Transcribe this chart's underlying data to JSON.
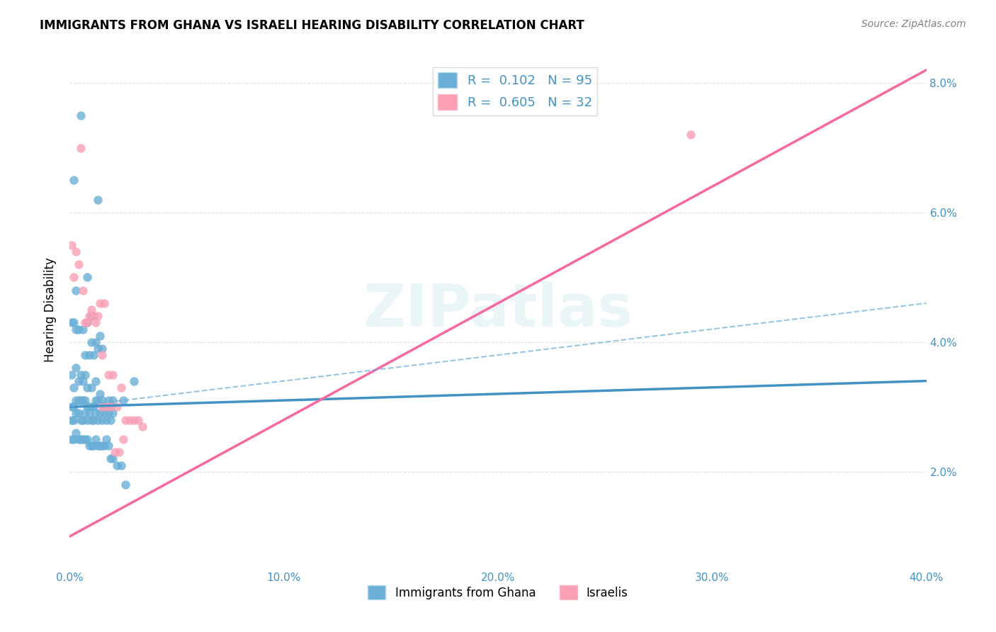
{
  "title": "IMMIGRANTS FROM GHANA VS ISRAELI HEARING DISABILITY CORRELATION CHART",
  "source": "Source: ZipAtlas.com",
  "xlabel_bottom": "",
  "ylabel": "Hearing Disability",
  "watermark": "ZIPatlas",
  "legend_r1": "R =  0.102   N = 95",
  "legend_r2": "R =  0.605   N = 32",
  "color_blue": "#6baed6",
  "color_pink": "#fa9fb5",
  "color_blue_dark": "#4292c6",
  "color_pink_dark": "#f768a1",
  "color_text_blue": "#4292c6",
  "xmin": 0.0,
  "xmax": 0.4,
  "ymin": 0.005,
  "ymax": 0.085,
  "yticks": [
    0.02,
    0.04,
    0.06,
    0.08
  ],
  "ytick_labels": [
    "2.0%",
    "4.0%",
    "6.0%",
    "8.0%"
  ],
  "xticks": [
    0.0,
    0.1,
    0.2,
    0.3,
    0.4
  ],
  "xtick_labels": [
    "0.0%",
    "10.0%",
    "20.0%",
    "30.0%",
    "40.0%"
  ],
  "blue_scatter_x": [
    0.005,
    0.013,
    0.002,
    0.008,
    0.003,
    0.001,
    0.002,
    0.004,
    0.003,
    0.006,
    0.008,
    0.01,
    0.01,
    0.012,
    0.014,
    0.015,
    0.007,
    0.009,
    0.011,
    0.013,
    0.001,
    0.003,
    0.005,
    0.007,
    0.002,
    0.004,
    0.006,
    0.008,
    0.01,
    0.012,
    0.001,
    0.002,
    0.003,
    0.004,
    0.005,
    0.006,
    0.007,
    0.008,
    0.009,
    0.01,
    0.011,
    0.012,
    0.013,
    0.014,
    0.015,
    0.016,
    0.017,
    0.018,
    0.019,
    0.02,
    0.001,
    0.002,
    0.003,
    0.004,
    0.005,
    0.006,
    0.007,
    0.008,
    0.009,
    0.01,
    0.011,
    0.012,
    0.013,
    0.014,
    0.015,
    0.016,
    0.017,
    0.018,
    0.019,
    0.02,
    0.025,
    0.03,
    0.001,
    0.002,
    0.003,
    0.004,
    0.005,
    0.006,
    0.007,
    0.008,
    0.009,
    0.01,
    0.011,
    0.012,
    0.013,
    0.014,
    0.015,
    0.016,
    0.017,
    0.018,
    0.019,
    0.02,
    0.022,
    0.024,
    0.026
  ],
  "blue_scatter_y": [
    0.075,
    0.062,
    0.065,
    0.05,
    0.048,
    0.043,
    0.043,
    0.042,
    0.042,
    0.042,
    0.043,
    0.044,
    0.04,
    0.04,
    0.041,
    0.039,
    0.038,
    0.038,
    0.038,
    0.039,
    0.035,
    0.036,
    0.035,
    0.035,
    0.033,
    0.034,
    0.034,
    0.033,
    0.033,
    0.034,
    0.03,
    0.03,
    0.031,
    0.031,
    0.031,
    0.031,
    0.031,
    0.03,
    0.03,
    0.03,
    0.03,
    0.031,
    0.031,
    0.032,
    0.031,
    0.03,
    0.03,
    0.031,
    0.03,
    0.031,
    0.028,
    0.028,
    0.029,
    0.029,
    0.028,
    0.028,
    0.029,
    0.028,
    0.029,
    0.028,
    0.028,
    0.029,
    0.028,
    0.029,
    0.028,
    0.029,
    0.028,
    0.029,
    0.028,
    0.029,
    0.031,
    0.034,
    0.025,
    0.025,
    0.026,
    0.025,
    0.025,
    0.025,
    0.025,
    0.025,
    0.024,
    0.024,
    0.024,
    0.025,
    0.024,
    0.024,
    0.024,
    0.024,
    0.025,
    0.024,
    0.022,
    0.022,
    0.021,
    0.021,
    0.018
  ],
  "pink_scatter_x": [
    0.002,
    0.004,
    0.006,
    0.008,
    0.01,
    0.012,
    0.014,
    0.016,
    0.018,
    0.02,
    0.022,
    0.024,
    0.026,
    0.028,
    0.03,
    0.032,
    0.034,
    0.001,
    0.003,
    0.005,
    0.007,
    0.009,
    0.011,
    0.013,
    0.015,
    0.017,
    0.019,
    0.021,
    0.023,
    0.025,
    0.29,
    0.015
  ],
  "pink_scatter_y": [
    0.05,
    0.052,
    0.048,
    0.043,
    0.045,
    0.043,
    0.046,
    0.046,
    0.035,
    0.035,
    0.03,
    0.033,
    0.028,
    0.028,
    0.028,
    0.028,
    0.027,
    0.055,
    0.054,
    0.07,
    0.043,
    0.044,
    0.044,
    0.044,
    0.03,
    0.03,
    0.03,
    0.023,
    0.023,
    0.025,
    0.072,
    0.038
  ],
  "blue_line_x": [
    0.0,
    0.4
  ],
  "blue_line_y_start": 0.03,
  "blue_line_y_end": 0.034,
  "pink_line_x": [
    0.0,
    0.4
  ],
  "pink_line_y_start": 0.01,
  "pink_line_y_end": 0.082,
  "dashed_line_x": [
    0.0,
    0.4
  ],
  "dashed_line_y_start": 0.03,
  "dashed_line_y_end": 0.046
}
